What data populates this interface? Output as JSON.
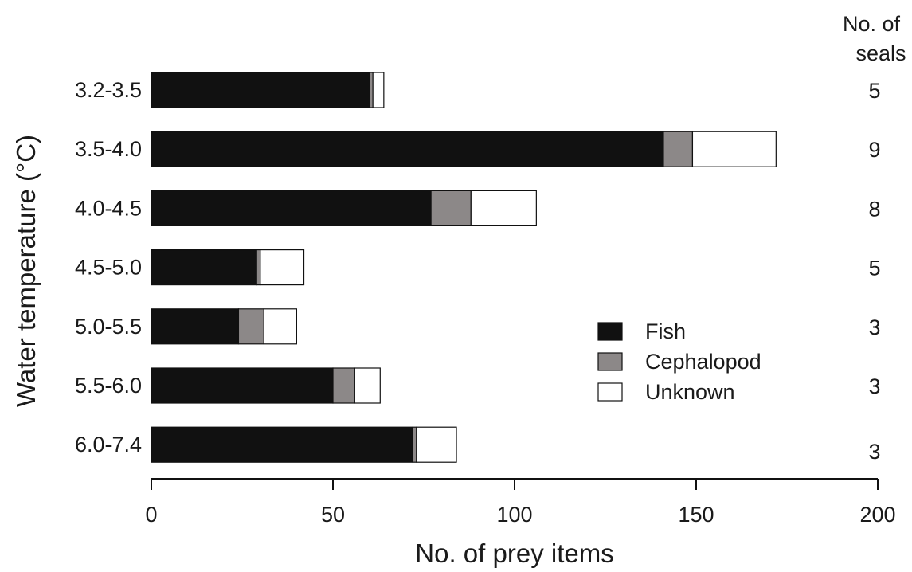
{
  "chart_data": {
    "type": "bar",
    "orientation": "horizontal",
    "stacked": true,
    "categories": [
      "3.2-3.5",
      "3.5-4.0",
      "4.0-4.5",
      "4.5-5.0",
      "5.0-5.5",
      "5.5-6.0",
      "6.0-7.4"
    ],
    "series": [
      {
        "name": "Fish",
        "values": [
          60,
          141,
          77,
          29,
          24,
          50,
          72
        ],
        "color": "#111111"
      },
      {
        "name": "Cephalopod",
        "values": [
          1,
          8,
          11,
          1,
          7,
          6,
          1
        ],
        "color": "#8c8888"
      },
      {
        "name": "Unknown",
        "values": [
          3,
          23,
          18,
          12,
          9,
          7,
          11
        ],
        "color": "#ffffff"
      }
    ],
    "seals": [
      5,
      9,
      8,
      5,
      3,
      3,
      3
    ],
    "seals_header": [
      "No. of",
      "seals"
    ],
    "xlabel": "No. of prey items",
    "ylabel": "Water temperature (°C)",
    "xlim": [
      0,
      200
    ],
    "xticks": [
      0,
      50,
      100,
      150,
      200
    ],
    "legend_position": "right-center",
    "grid": false
  }
}
